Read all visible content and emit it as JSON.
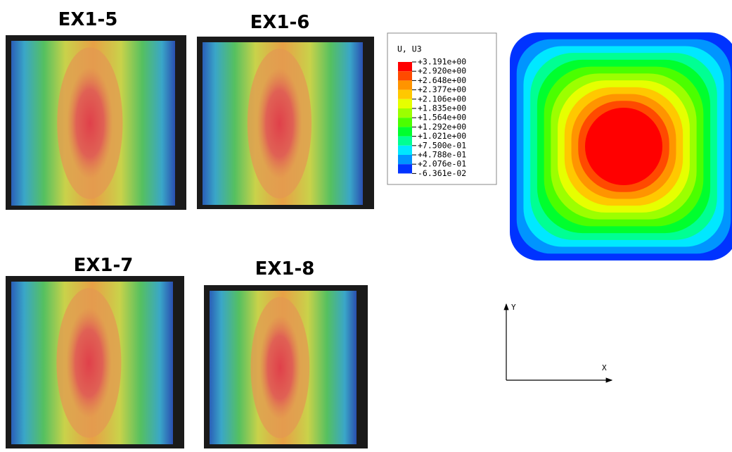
{
  "panels": [
    {
      "title": "EX1-5"
    },
    {
      "title": "EX1-6"
    },
    {
      "title": "EX1-7"
    },
    {
      "title": "EX1-8"
    }
  ],
  "legend": {
    "title": "U, U3",
    "labels": [
      "+3.191e+00",
      "+2.920e+00",
      "+2.648e+00",
      "+2.377e+00",
      "+2.106e+00",
      "+1.835e+00",
      "+1.564e+00",
      "+1.292e+00",
      "+1.021e+00",
      "+7.500e-01",
      "+4.788e-01",
      "+2.076e-01",
      "-6.361e-02"
    ],
    "colors": [
      "#ff0000",
      "#ff4a00",
      "#ff9400",
      "#ffc800",
      "#e6ff00",
      "#9cff00",
      "#4bff00",
      "#00ff2e",
      "#00ff93",
      "#00e8ff",
      "#0095ff",
      "#0033ff"
    ]
  },
  "axes": {
    "y": "Y",
    "x": "X"
  }
}
